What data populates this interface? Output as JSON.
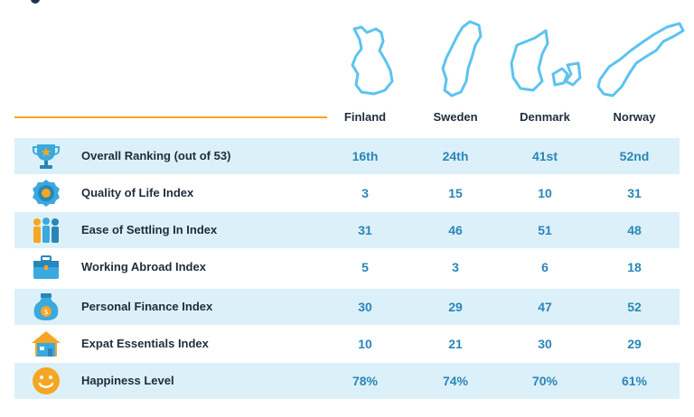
{
  "countries": [
    "Finland",
    "Sweden",
    "Denmark",
    "Norway"
  ],
  "map_icons": [
    "finland-map-icon",
    "sweden-map-icon",
    "denmark-map-icon",
    "norway-map-icon"
  ],
  "colors": {
    "accent_line": "#f5a623",
    "map_outline": "#5cc3ef",
    "row_shade": "#dcf0f9",
    "value_text": "#2a86b8",
    "label_text": "#1f2d3d"
  },
  "rows": [
    {
      "label": "Overall Ranking (out of 53)",
      "icon": "trophy-icon",
      "values": [
        "16th",
        "24th",
        "41st",
        "52nd"
      ]
    },
    {
      "label": "Quality of Life Index",
      "icon": "award-badge-icon",
      "values": [
        "3",
        "15",
        "10",
        "31"
      ]
    },
    {
      "label": "Ease of Settling In Index",
      "icon": "people-group-icon",
      "values": [
        "31",
        "46",
        "51",
        "48"
      ]
    },
    {
      "label": "Working Abroad Index",
      "icon": "briefcase-icon",
      "values": [
        "5",
        "3",
        "6",
        "18"
      ]
    },
    {
      "label": "Personal Finance Index",
      "icon": "money-bag-icon",
      "values": [
        "30",
        "29",
        "47",
        "52"
      ]
    },
    {
      "label": "Expat Essentials Index",
      "icon": "house-icon",
      "values": [
        "10",
        "21",
        "30",
        "29"
      ]
    },
    {
      "label": "Happiness Level",
      "icon": "smiley-face-icon",
      "values": [
        "78%",
        "74%",
        "70%",
        "61%"
      ]
    }
  ]
}
